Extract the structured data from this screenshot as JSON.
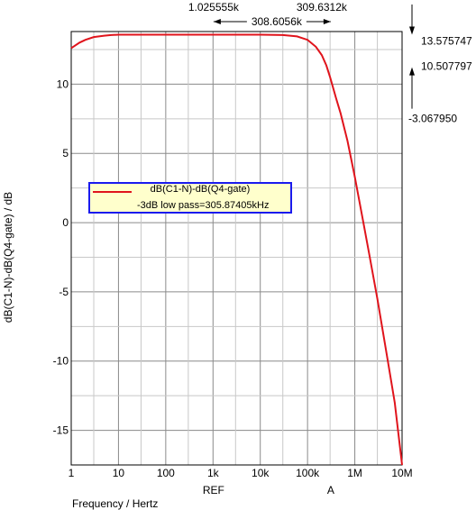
{
  "chart_data": {
    "type": "line",
    "xscale": "log",
    "xlim": [
      1,
      10000000
    ],
    "ylim": [
      -17.5,
      13.8
    ],
    "x_ticks": [
      1,
      10,
      100,
      1000,
      10000,
      100000,
      1000000,
      10000000
    ],
    "x_tick_labels": [
      "1",
      "10",
      "100",
      "1k",
      "10k",
      "100k",
      "1M",
      "10M"
    ],
    "y_ticks": [
      10,
      5,
      0,
      -5,
      -10,
      -15
    ],
    "y_tick_labels": [
      "10",
      "5",
      "0",
      "-5",
      "-10",
      "-15"
    ],
    "xlabel": "Frequency / Hertz",
    "ylabel": "dB(C1-N)-dB(Q4-gate) / dB",
    "grid": true,
    "legend_position": "center-left",
    "legend": {
      "series_name": "dB(C1-N)-dB(Q4-gate)",
      "annotation": "-3dB low pass=305.87405kHz"
    },
    "line_color": "#e0141c",
    "legend_border_color": "#1a1aee",
    "legend_fill": "#ffffcc",
    "cursors": {
      "ref_label": "REF",
      "a_label": "A",
      "ref_x": 1025.555,
      "a_x": 309631.2,
      "ref_x_text": "1.025555k",
      "a_x_text": "309.6312k",
      "delta_x_text": "308.6056k",
      "ref_y_text": "13.575747",
      "a_y_text": "10.507797",
      "delta_y_text": "-3.067950"
    },
    "series": [
      {
        "name": "dB(C1-N)-dB(Q4-gate)",
        "x": [
          1,
          1.5,
          2,
          3,
          5,
          7,
          10,
          20,
          100,
          1000,
          10000,
          30000,
          60000,
          100000,
          150000,
          200000,
          250000,
          300000,
          400000,
          500000,
          700000,
          1000000,
          1500000,
          2000000,
          3000000,
          5000000,
          7000000,
          10000000
        ],
        "y": [
          12.6,
          13.0,
          13.2,
          13.4,
          13.5,
          13.55,
          13.57,
          13.575,
          13.576,
          13.576,
          13.575,
          13.55,
          13.45,
          13.2,
          12.7,
          12.1,
          11.35,
          10.5,
          9.0,
          7.9,
          5.9,
          3.3,
          0.1,
          -2.2,
          -5.5,
          -10.0,
          -13.0,
          -17.5
        ]
      }
    ]
  }
}
